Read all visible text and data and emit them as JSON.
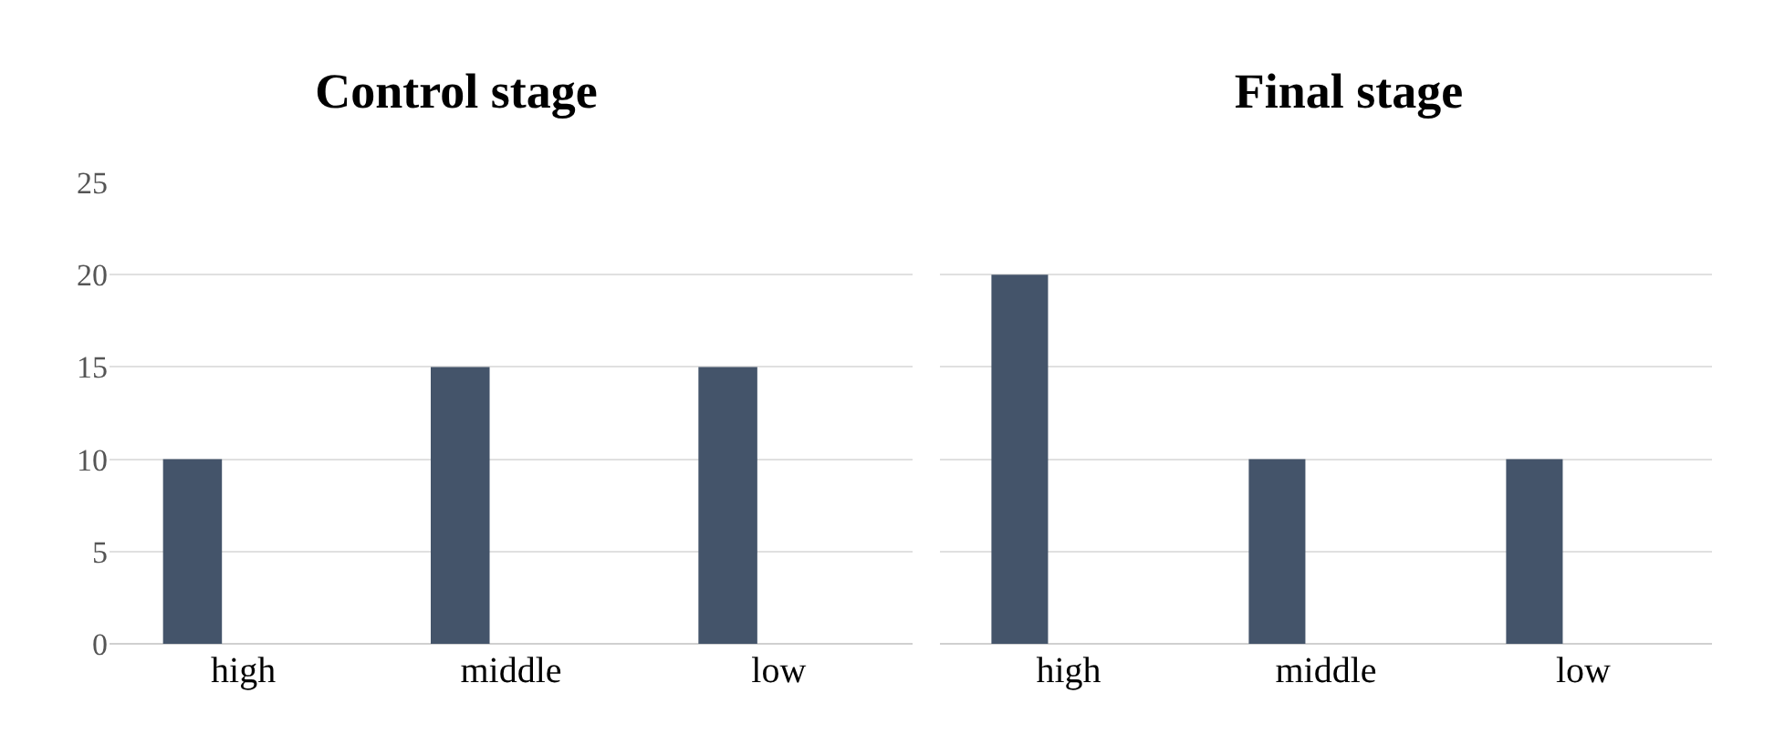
{
  "chart_data": [
    {
      "type": "bar",
      "title": "Control stage",
      "categories": [
        "high",
        "middle",
        "low"
      ],
      "values": [
        10,
        15,
        15
      ],
      "color": "#44546a",
      "ylim": [
        0,
        25
      ],
      "yticks": [
        0,
        5,
        10,
        15,
        20,
        25
      ],
      "grid": "y"
    },
    {
      "type": "bar",
      "title": "Final stage",
      "categories": [
        "high",
        "middle",
        "low"
      ],
      "values": [
        20,
        10,
        10
      ],
      "color": "#44546a",
      "ylim": [
        0,
        25
      ],
      "yticks": [
        0,
        5,
        10,
        15,
        20,
        25
      ],
      "grid": "y",
      "tick_labels": "x"
    }
  ]
}
